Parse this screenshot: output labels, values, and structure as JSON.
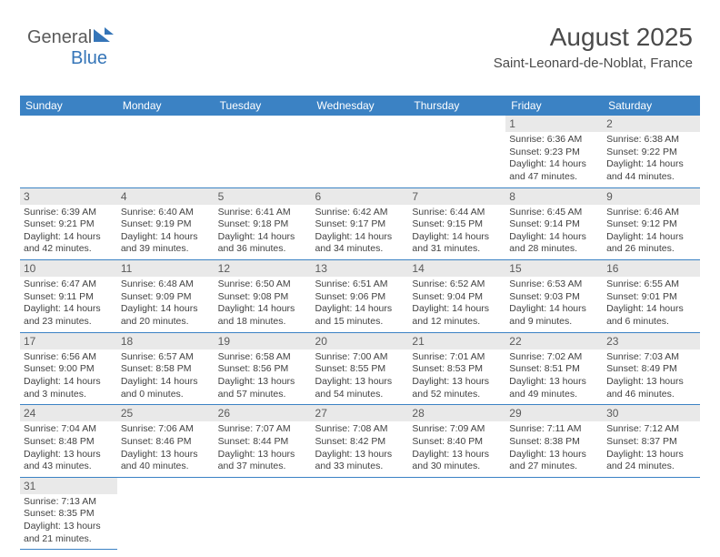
{
  "logo": {
    "text1": "General",
    "text2": "Blue"
  },
  "header": {
    "month": "August 2025",
    "location": "Saint-Leonard-de-Noblat, France"
  },
  "colors": {
    "brand": "#3b82c4",
    "daynum_bg": "#e9e9e9",
    "text": "#414141"
  },
  "dow": [
    "Sunday",
    "Monday",
    "Tuesday",
    "Wednesday",
    "Thursday",
    "Friday",
    "Saturday"
  ],
  "weeks": [
    [
      {
        "n": "",
        "sr": "",
        "ss": "",
        "dl": ""
      },
      {
        "n": "",
        "sr": "",
        "ss": "",
        "dl": ""
      },
      {
        "n": "",
        "sr": "",
        "ss": "",
        "dl": ""
      },
      {
        "n": "",
        "sr": "",
        "ss": "",
        "dl": ""
      },
      {
        "n": "",
        "sr": "",
        "ss": "",
        "dl": ""
      },
      {
        "n": "1",
        "sr": "Sunrise: 6:36 AM",
        "ss": "Sunset: 9:23 PM",
        "dl": "Daylight: 14 hours and 47 minutes."
      },
      {
        "n": "2",
        "sr": "Sunrise: 6:38 AM",
        "ss": "Sunset: 9:22 PM",
        "dl": "Daylight: 14 hours and 44 minutes."
      }
    ],
    [
      {
        "n": "3",
        "sr": "Sunrise: 6:39 AM",
        "ss": "Sunset: 9:21 PM",
        "dl": "Daylight: 14 hours and 42 minutes."
      },
      {
        "n": "4",
        "sr": "Sunrise: 6:40 AM",
        "ss": "Sunset: 9:19 PM",
        "dl": "Daylight: 14 hours and 39 minutes."
      },
      {
        "n": "5",
        "sr": "Sunrise: 6:41 AM",
        "ss": "Sunset: 9:18 PM",
        "dl": "Daylight: 14 hours and 36 minutes."
      },
      {
        "n": "6",
        "sr": "Sunrise: 6:42 AM",
        "ss": "Sunset: 9:17 PM",
        "dl": "Daylight: 14 hours and 34 minutes."
      },
      {
        "n": "7",
        "sr": "Sunrise: 6:44 AM",
        "ss": "Sunset: 9:15 PM",
        "dl": "Daylight: 14 hours and 31 minutes."
      },
      {
        "n": "8",
        "sr": "Sunrise: 6:45 AM",
        "ss": "Sunset: 9:14 PM",
        "dl": "Daylight: 14 hours and 28 minutes."
      },
      {
        "n": "9",
        "sr": "Sunrise: 6:46 AM",
        "ss": "Sunset: 9:12 PM",
        "dl": "Daylight: 14 hours and 26 minutes."
      }
    ],
    [
      {
        "n": "10",
        "sr": "Sunrise: 6:47 AM",
        "ss": "Sunset: 9:11 PM",
        "dl": "Daylight: 14 hours and 23 minutes."
      },
      {
        "n": "11",
        "sr": "Sunrise: 6:48 AM",
        "ss": "Sunset: 9:09 PM",
        "dl": "Daylight: 14 hours and 20 minutes."
      },
      {
        "n": "12",
        "sr": "Sunrise: 6:50 AM",
        "ss": "Sunset: 9:08 PM",
        "dl": "Daylight: 14 hours and 18 minutes."
      },
      {
        "n": "13",
        "sr": "Sunrise: 6:51 AM",
        "ss": "Sunset: 9:06 PM",
        "dl": "Daylight: 14 hours and 15 minutes."
      },
      {
        "n": "14",
        "sr": "Sunrise: 6:52 AM",
        "ss": "Sunset: 9:04 PM",
        "dl": "Daylight: 14 hours and 12 minutes."
      },
      {
        "n": "15",
        "sr": "Sunrise: 6:53 AM",
        "ss": "Sunset: 9:03 PM",
        "dl": "Daylight: 14 hours and 9 minutes."
      },
      {
        "n": "16",
        "sr": "Sunrise: 6:55 AM",
        "ss": "Sunset: 9:01 PM",
        "dl": "Daylight: 14 hours and 6 minutes."
      }
    ],
    [
      {
        "n": "17",
        "sr": "Sunrise: 6:56 AM",
        "ss": "Sunset: 9:00 PM",
        "dl": "Daylight: 14 hours and 3 minutes."
      },
      {
        "n": "18",
        "sr": "Sunrise: 6:57 AM",
        "ss": "Sunset: 8:58 PM",
        "dl": "Daylight: 14 hours and 0 minutes."
      },
      {
        "n": "19",
        "sr": "Sunrise: 6:58 AM",
        "ss": "Sunset: 8:56 PM",
        "dl": "Daylight: 13 hours and 57 minutes."
      },
      {
        "n": "20",
        "sr": "Sunrise: 7:00 AM",
        "ss": "Sunset: 8:55 PM",
        "dl": "Daylight: 13 hours and 54 minutes."
      },
      {
        "n": "21",
        "sr": "Sunrise: 7:01 AM",
        "ss": "Sunset: 8:53 PM",
        "dl": "Daylight: 13 hours and 52 minutes."
      },
      {
        "n": "22",
        "sr": "Sunrise: 7:02 AM",
        "ss": "Sunset: 8:51 PM",
        "dl": "Daylight: 13 hours and 49 minutes."
      },
      {
        "n": "23",
        "sr": "Sunrise: 7:03 AM",
        "ss": "Sunset: 8:49 PM",
        "dl": "Daylight: 13 hours and 46 minutes."
      }
    ],
    [
      {
        "n": "24",
        "sr": "Sunrise: 7:04 AM",
        "ss": "Sunset: 8:48 PM",
        "dl": "Daylight: 13 hours and 43 minutes."
      },
      {
        "n": "25",
        "sr": "Sunrise: 7:06 AM",
        "ss": "Sunset: 8:46 PM",
        "dl": "Daylight: 13 hours and 40 minutes."
      },
      {
        "n": "26",
        "sr": "Sunrise: 7:07 AM",
        "ss": "Sunset: 8:44 PM",
        "dl": "Daylight: 13 hours and 37 minutes."
      },
      {
        "n": "27",
        "sr": "Sunrise: 7:08 AM",
        "ss": "Sunset: 8:42 PM",
        "dl": "Daylight: 13 hours and 33 minutes."
      },
      {
        "n": "28",
        "sr": "Sunrise: 7:09 AM",
        "ss": "Sunset: 8:40 PM",
        "dl": "Daylight: 13 hours and 30 minutes."
      },
      {
        "n": "29",
        "sr": "Sunrise: 7:11 AM",
        "ss": "Sunset: 8:38 PM",
        "dl": "Daylight: 13 hours and 27 minutes."
      },
      {
        "n": "30",
        "sr": "Sunrise: 7:12 AM",
        "ss": "Sunset: 8:37 PM",
        "dl": "Daylight: 13 hours and 24 minutes."
      }
    ],
    [
      {
        "n": "31",
        "sr": "Sunrise: 7:13 AM",
        "ss": "Sunset: 8:35 PM",
        "dl": "Daylight: 13 hours and 21 minutes."
      },
      {
        "n": "",
        "sr": "",
        "ss": "",
        "dl": ""
      },
      {
        "n": "",
        "sr": "",
        "ss": "",
        "dl": ""
      },
      {
        "n": "",
        "sr": "",
        "ss": "",
        "dl": ""
      },
      {
        "n": "",
        "sr": "",
        "ss": "",
        "dl": ""
      },
      {
        "n": "",
        "sr": "",
        "ss": "",
        "dl": ""
      },
      {
        "n": "",
        "sr": "",
        "ss": "",
        "dl": ""
      }
    ]
  ]
}
